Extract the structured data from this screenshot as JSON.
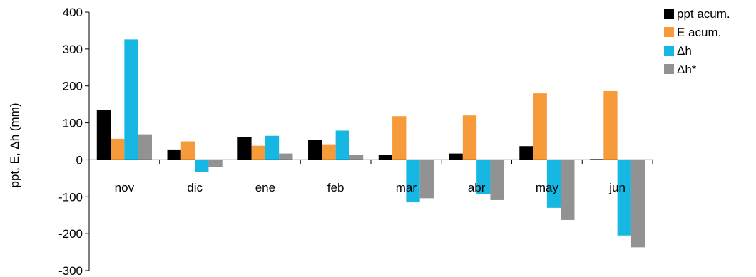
{
  "chart_data": {
    "type": "bar",
    "categories": [
      "nov",
      "dic",
      "ene",
      "feb",
      "mar",
      "abr",
      "may",
      "jun"
    ],
    "series": [
      {
        "name": "ppt acum.",
        "color": "#000000",
        "values": [
          135,
          28,
          62,
          54,
          14,
          17,
          37,
          2
        ]
      },
      {
        "name": "E acum.",
        "color": "#F79A3A",
        "values": [
          57,
          50,
          38,
          42,
          118,
          120,
          180,
          186
        ]
      },
      {
        "name": "Δh",
        "color": "#16B7E2",
        "values": [
          326,
          -32,
          65,
          79,
          -115,
          -92,
          -130,
          -205
        ]
      },
      {
        "name": "Δh*",
        "color": "#929292",
        "values": [
          69,
          -19,
          17,
          13,
          -104,
          -109,
          -163,
          -237
        ]
      }
    ],
    "ylabel": "ppt, E, Δh (mm)",
    "ylim": [
      -300,
      400
    ],
    "yticks": [
      -300,
      -200,
      -100,
      0,
      100,
      200,
      300,
      400
    ],
    "grid": false,
    "legend": "right"
  }
}
